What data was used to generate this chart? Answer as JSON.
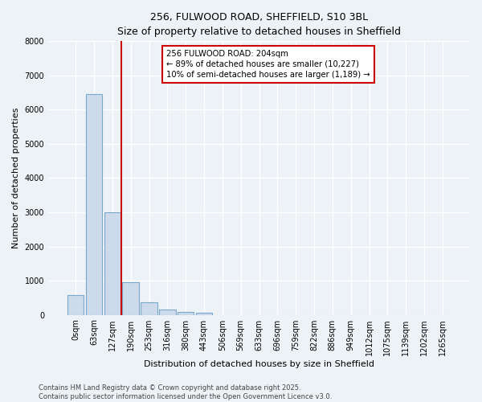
{
  "title_line1": "256, FULWOOD ROAD, SHEFFIELD, S10 3BL",
  "title_line2": "Size of property relative to detached houses in Sheffield",
  "xlabel": "Distribution of detached houses by size in Sheffield",
  "ylabel": "Number of detached properties",
  "bar_color": "#ccdaeb",
  "bar_edge_color": "#7aa8cc",
  "categories": [
    "0sqm",
    "63sqm",
    "127sqm",
    "190sqm",
    "253sqm",
    "316sqm",
    "380sqm",
    "443sqm",
    "506sqm",
    "569sqm",
    "633sqm",
    "696sqm",
    "759sqm",
    "822sqm",
    "886sqm",
    "949sqm",
    "1012sqm",
    "1075sqm",
    "1139sqm",
    "1202sqm",
    "1265sqm"
  ],
  "values": [
    580,
    6450,
    3000,
    950,
    370,
    160,
    95,
    60,
    0,
    0,
    0,
    0,
    0,
    0,
    0,
    0,
    0,
    0,
    0,
    0,
    0
  ],
  "vline_index": 2.5,
  "annotation_text": "256 FULWOOD ROAD: 204sqm\n← 89% of detached houses are smaller (10,227)\n10% of semi-detached houses are larger (1,189) →",
  "annotation_box_color": "#ffffff",
  "annotation_box_edge_color": "#cc0000",
  "vline_color": "#cc0000",
  "ylim": [
    0,
    8000
  ],
  "yticks": [
    0,
    1000,
    2000,
    3000,
    4000,
    5000,
    6000,
    7000,
    8000
  ],
  "footer_line1": "Contains HM Land Registry data © Crown copyright and database right 2025.",
  "footer_line2": "Contains public sector information licensed under the Open Government Licence v3.0.",
  "bg_color": "#edf2f7",
  "plot_bg_color": "#edf2f7",
  "grid_color": "#ffffff",
  "title_fontsize": 9,
  "ylabel_fontsize": 8,
  "xlabel_fontsize": 8,
  "tick_fontsize": 7,
  "footer_fontsize": 6
}
